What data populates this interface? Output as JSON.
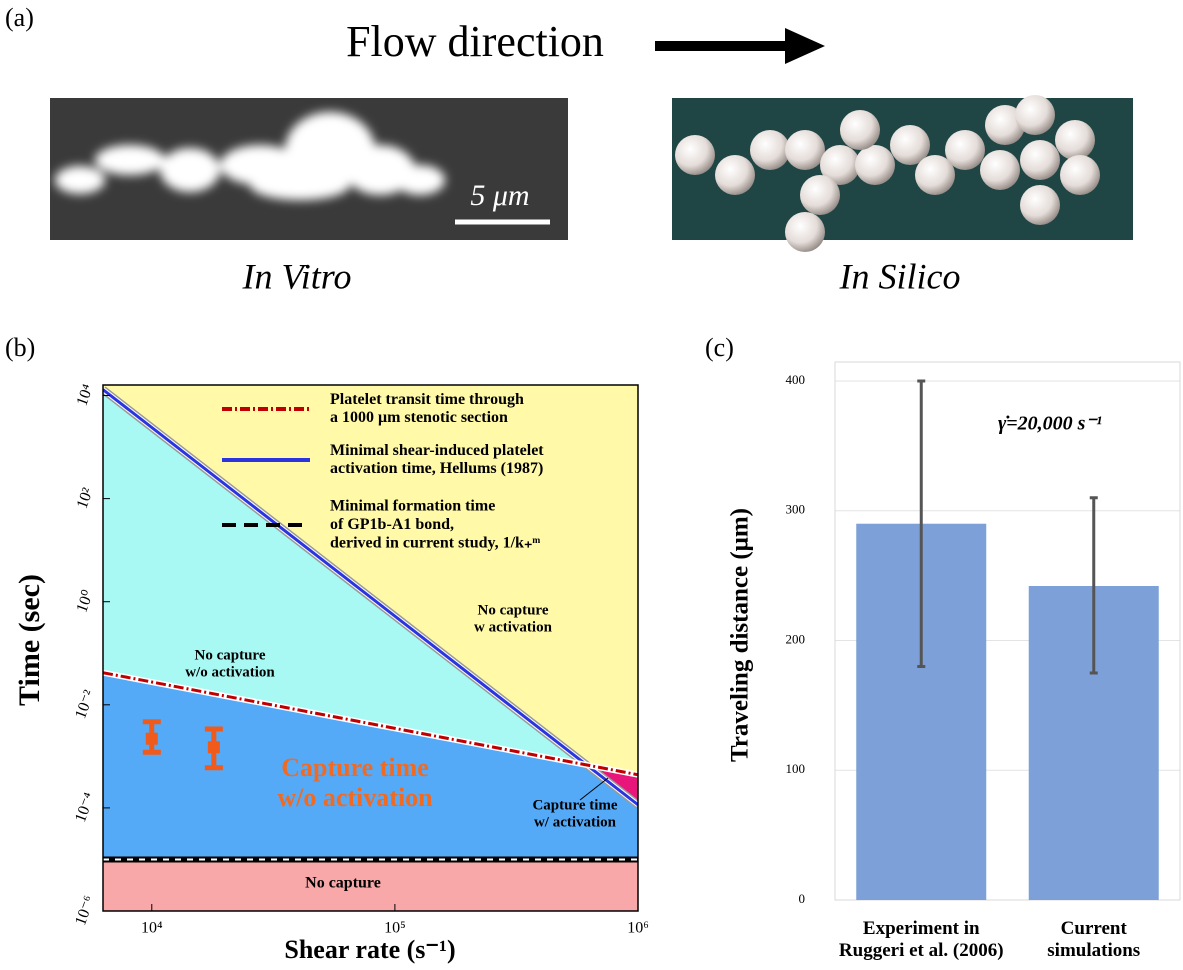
{
  "panel_a": {
    "label": "(a)",
    "title": "Flow direction",
    "scale_bar": "5 μm",
    "captions": [
      "In Vitro",
      "In Silico"
    ]
  },
  "chart_data": [
    {
      "type": "region-loglog",
      "label": "(b)",
      "xlabel": "Shear rate (s⁻¹)",
      "ylabel": "Time (sec)",
      "xlim": [
        6300,
        1000000
      ],
      "ylim": [
        1e-06,
        16000
      ],
      "xlog": true,
      "ylog": true,
      "xticks": [
        {
          "value": 10000,
          "label": "10⁴"
        },
        {
          "value": 100000,
          "label": "10⁵"
        },
        {
          "value": 1000000,
          "label": "10⁶"
        }
      ],
      "yticks": [
        {
          "value": 1e-06,
          "label": "10⁻⁶"
        },
        {
          "value": 0.0001,
          "label": "10⁻⁴"
        },
        {
          "value": 0.01,
          "label": "10⁻²"
        },
        {
          "value": 1,
          "label": "10⁰"
        },
        {
          "value": 100,
          "label": "10²"
        },
        {
          "value": 10000,
          "label": "10⁴"
        }
      ],
      "series": [
        {
          "name": "Platelet transit time through\na 1000 μm stenotic section",
          "color": "#c00000",
          "x": [
            6300,
            1000000
          ],
          "values": [
            0.042,
            0.00044
          ]
        },
        {
          "name": "Minimal shear-induced platelet\nactivation time, Hellums (1987)",
          "color": "#2a35e0",
          "x": [
            6300,
            1000000
          ],
          "values": [
            13000,
            0.000115
          ]
        },
        {
          "name": "Minimal formation time\nof GP1b-A1 bond,\nderived in current study, 1/k₊ᵐ",
          "color": "#000000",
          "x": [
            6300,
            1000000
          ],
          "values": [
            1e-05,
            1e-05
          ]
        }
      ],
      "points": {
        "color": "#f05a1a",
        "x": [
          10000,
          18000
        ],
        "values": [
          0.0022,
          0.0015
        ],
        "low": [
          0.0012,
          0.0006
        ],
        "high": [
          0.0047,
          0.0034
        ]
      },
      "annotations": [
        "No capture\nw/o activation",
        "No capture\nw activation",
        "Capture time\nw/o activation",
        "Capture time\nw/ activation",
        "No capture"
      ]
    },
    {
      "type": "bar",
      "label": "(c)",
      "ylabel": "Traveling distance (μm)",
      "annotation": "γ̇=20,000 s⁻¹",
      "categories": [
        "Experiment in\nRuggeri et al. (2006)",
        "Current\nsimulations"
      ],
      "values": [
        290,
        242
      ],
      "low": [
        180,
        175
      ],
      "high": [
        400,
        310
      ],
      "color": "#7da0d8",
      "ylim": [
        0,
        400
      ],
      "yticks": [
        0,
        100,
        200,
        300,
        400
      ],
      "grid": true
    }
  ]
}
